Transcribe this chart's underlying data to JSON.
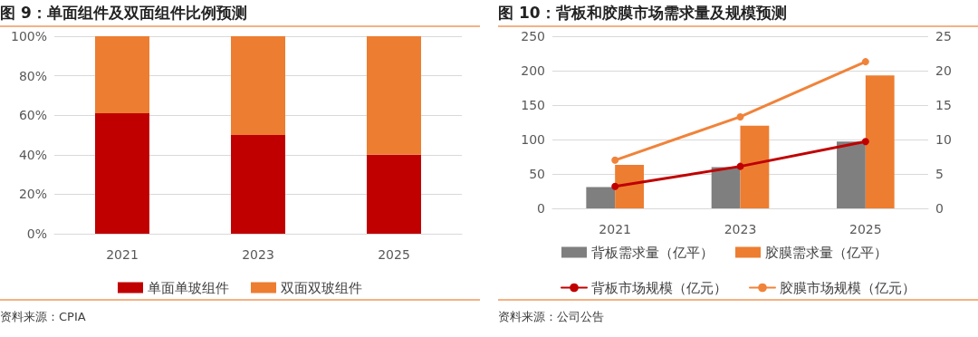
{
  "chart_data": [
    {
      "type": "bar",
      "title": "图 9：单面组件及双面组件比例预测",
      "categories": [
        "2021",
        "2023",
        "2025"
      ],
      "stacked": true,
      "series": [
        {
          "name": "单面单玻组件",
          "color": "#c00000",
          "values": [
            61,
            50,
            40
          ]
        },
        {
          "name": "双面双玻组件",
          "color": "#ed7d31",
          "values": [
            39,
            50,
            60
          ]
        }
      ],
      "ylim": [
        0,
        100
      ],
      "yticks": [
        {
          "value": 0,
          "label": "0%"
        },
        {
          "value": 20,
          "label": "20%"
        },
        {
          "value": 40,
          "label": "40%"
        },
        {
          "value": 60,
          "label": "60%"
        },
        {
          "value": 80,
          "label": "80%"
        },
        {
          "value": 100,
          "label": "100%"
        }
      ],
      "grid": "y",
      "legend": "bottom",
      "annotations": [
        "资料来源：CPIA"
      ]
    },
    {
      "type": "bar",
      "title": "图 10：背板和胶膜市场需求量及规模预测",
      "categories": [
        "2021",
        "2023",
        "2025"
      ],
      "series": [
        {
          "name": "背板需求量（亿平）",
          "color": "#7f7f7f",
          "values": [
            31,
            60,
            97
          ]
        },
        {
          "name": "胶膜需求量（亿平）",
          "color": "#ed7d31",
          "values": [
            63,
            120,
            193
          ]
        },
        {
          "name": "背板市场规模（亿元）",
          "type": "line",
          "axis": "y2",
          "color": "#c00000",
          "values": [
            3.2,
            6.1,
            9.7
          ]
        },
        {
          "name": "胶膜市场规模（亿元）",
          "type": "line",
          "axis": "y2",
          "color": "#f0833a",
          "values": [
            7.0,
            13.3,
            21.3
          ]
        }
      ],
      "ylim": [
        0,
        250
      ],
      "yticks": [
        0,
        50,
        100,
        150,
        200,
        250
      ],
      "y2lim": [
        0,
        25
      ],
      "y2ticks": [
        0,
        5,
        10,
        15,
        20,
        25
      ],
      "grid": "y",
      "legend": "bottom",
      "marker": "circle",
      "annotations": [
        "资料来源：公司公告"
      ]
    }
  ]
}
